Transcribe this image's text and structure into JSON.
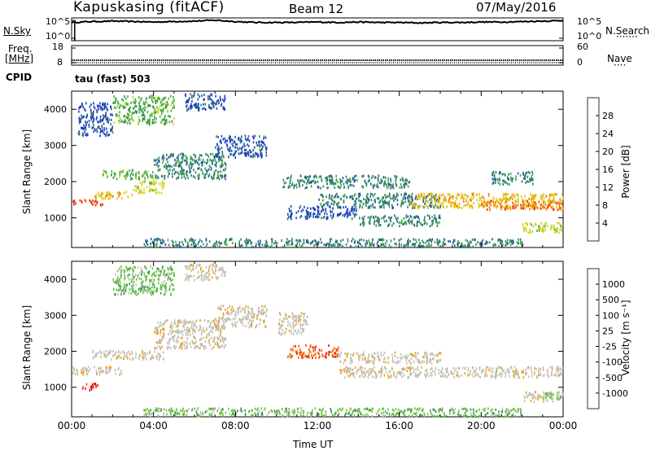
{
  "header": {
    "station": "Kapuskasing (fitACF)",
    "beam": "Beam 12",
    "date": "07/May/2016"
  },
  "chart_data": [
    {
      "type": "line",
      "name_label": "N.Sky",
      "right_label": "N.Search",
      "left_ticks": [
        "10^5",
        "10^0"
      ],
      "right_ticks": [
        "10^5",
        "10^0"
      ],
      "x": [
        0,
        1,
        2,
        3,
        4,
        5,
        6,
        7,
        8,
        9,
        10,
        11,
        12,
        13,
        14,
        15,
        16,
        17,
        18,
        19,
        20,
        21,
        22,
        23,
        24
      ],
      "values": [
        4.0,
        4.2,
        4.3,
        4.2,
        4.1,
        4.2,
        4.3,
        4.5,
        4.2,
        4.0,
        4.0,
        4.0,
        4.1,
        4.0,
        4.1,
        4.0,
        4.0,
        3.9,
        4.0,
        4.0,
        4.1,
        4.1,
        4.2,
        4.3,
        4.4
      ],
      "ylim": [
        0,
        5
      ]
    },
    {
      "type": "line",
      "freq_label": "Freq.",
      "freq_unit": "[MHz]",
      "cpid_label": "CPID",
      "nave_label": "Nave",
      "left_ticks": [
        "18",
        "8"
      ],
      "right_ticks": [
        "60",
        "0"
      ],
      "x": [
        0,
        24
      ],
      "values": [
        10.5,
        10.5
      ],
      "ylim": [
        8,
        18
      ]
    },
    {
      "type": "heatmap",
      "mode_label": "tau (fast) 503",
      "ylabel": "Slant Range [km]",
      "y_ticks": [
        "4000",
        "3000",
        "2000",
        "1000"
      ],
      "ylim": [
        180,
        4500
      ],
      "colorbar_label": "Power [dB]",
      "colorbar_ticks": [
        "28",
        "24",
        "20",
        "16",
        "12",
        "8",
        "4"
      ],
      "colors": [
        "#1a1aff",
        "#1f4fa8",
        "#2f7f6a",
        "#3fae3f",
        "#c8d81a",
        "#f2b70a",
        "#f07a0a",
        "#e82a0a"
      ],
      "bands": [
        {
          "t0": 0.0,
          "t1": 1.5,
          "r0": 1380,
          "r1": 1530,
          "level": 7
        },
        {
          "t0": 1.0,
          "t1": 3.0,
          "r0": 1560,
          "r1": 1750,
          "level": 5
        },
        {
          "t0": 3.0,
          "t1": 4.5,
          "r0": 1700,
          "r1": 2050,
          "level": 4
        },
        {
          "t0": 4.0,
          "t1": 7.5,
          "r0": 2100,
          "r1": 2800,
          "level": 2
        },
        {
          "t0": 1.5,
          "t1": 4.0,
          "r0": 2100,
          "r1": 2350,
          "level": 3
        },
        {
          "t0": 2.0,
          "t1": 5.0,
          "r0": 3600,
          "r1": 4400,
          "level": 3
        },
        {
          "t0": 5.5,
          "t1": 7.5,
          "r0": 4000,
          "r1": 4450,
          "level": 1
        },
        {
          "t0": 7.0,
          "t1": 9.5,
          "r0": 2700,
          "r1": 3300,
          "level": 1
        },
        {
          "t0": 0.3,
          "t1": 2.0,
          "r0": 3300,
          "r1": 4200,
          "level": 1
        },
        {
          "t0": 10.3,
          "t1": 16.5,
          "r0": 1850,
          "r1": 2200,
          "level": 2
        },
        {
          "t0": 12.0,
          "t1": 18.0,
          "r0": 1300,
          "r1": 1700,
          "level": 2
        },
        {
          "t0": 16.5,
          "t1": 24.0,
          "r0": 1300,
          "r1": 1700,
          "level": 5
        },
        {
          "t0": 20.0,
          "t1": 24.0,
          "r0": 1250,
          "r1": 1500,
          "level": 6
        },
        {
          "t0": 22.0,
          "t1": 24.0,
          "r0": 620,
          "r1": 900,
          "level": 4
        },
        {
          "t0": 14.0,
          "t1": 18.0,
          "r0": 800,
          "r1": 1100,
          "level": 2
        },
        {
          "t0": 3.5,
          "t1": 22.0,
          "r0": 220,
          "r1": 450,
          "level": 2
        },
        {
          "t0": 10.5,
          "t1": 14.0,
          "r0": 1000,
          "r1": 1350,
          "level": 1
        },
        {
          "t0": 20.5,
          "t1": 22.5,
          "r0": 1950,
          "r1": 2300,
          "level": 2
        }
      ]
    },
    {
      "type": "heatmap",
      "ylabel": "Slant Range [km]",
      "xlabel": "Time UT",
      "y_ticks": [
        "4000",
        "3000",
        "2000",
        "1000"
      ],
      "x_ticks": [
        "00:00",
        "04:00",
        "08:00",
        "12:00",
        "16:00",
        "20:00",
        "00:00"
      ],
      "xlim": [
        0,
        24
      ],
      "ylim": [
        180,
        4500
      ],
      "colorbar_label": "Velocity [m s⁻¹]",
      "colorbar_ticks": [
        "1000",
        "500",
        "100",
        "25",
        "-25",
        "-100",
        "-500",
        "-1000"
      ],
      "colors": [
        "#e81010",
        "#f05a0a",
        "#f0a010",
        "#c0c0b8",
        "#c0c0b8",
        "#6cc040",
        "#2f8f5f",
        "#1f4fa8",
        "#1a1aff"
      ],
      "bands": [
        {
          "t0": 0.0,
          "t1": 2.5,
          "r0": 1380,
          "r1": 1600,
          "level": 3
        },
        {
          "t0": 1.0,
          "t1": 4.5,
          "r0": 1800,
          "r1": 2050,
          "level": 3
        },
        {
          "t0": 4.0,
          "t1": 7.5,
          "r0": 2100,
          "r1": 2900,
          "level": 3
        },
        {
          "t0": 2.0,
          "t1": 5.0,
          "r0": 3600,
          "r1": 4400,
          "level": 5
        },
        {
          "t0": 5.5,
          "t1": 7.5,
          "r0": 4000,
          "r1": 4450,
          "level": 3
        },
        {
          "t0": 7.0,
          "t1": 9.5,
          "r0": 2700,
          "r1": 3300,
          "level": 3
        },
        {
          "t0": 10.5,
          "t1": 13.0,
          "r0": 1850,
          "r1": 2200,
          "level": 1
        },
        {
          "t0": 13.0,
          "t1": 18.0,
          "r0": 1700,
          "r1": 2000,
          "level": 3
        },
        {
          "t0": 13.0,
          "t1": 24.0,
          "r0": 1300,
          "r1": 1600,
          "level": 3
        },
        {
          "t0": 22.0,
          "t1": 24.0,
          "r0": 620,
          "r1": 900,
          "level": 3
        },
        {
          "t0": 23.0,
          "t1": 24.0,
          "r0": 700,
          "r1": 900,
          "level": 5
        },
        {
          "t0": 3.5,
          "t1": 22.0,
          "r0": 220,
          "r1": 450,
          "level": 5
        },
        {
          "t0": 0.5,
          "t1": 1.3,
          "r0": 950,
          "r1": 1150,
          "level": 0
        },
        {
          "t0": 10.0,
          "t1": 11.5,
          "r0": 2500,
          "r1": 3100,
          "level": 3
        }
      ]
    }
  ]
}
